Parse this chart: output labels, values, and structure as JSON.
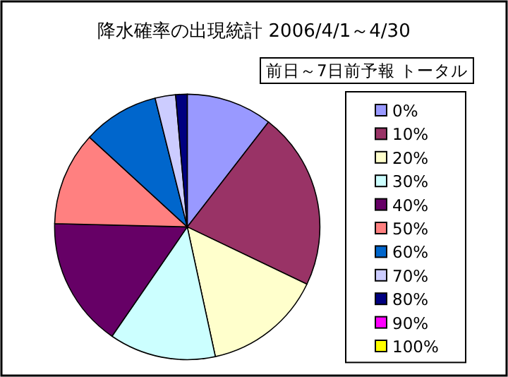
{
  "chart_data": {
    "type": "pie",
    "title": "降水確率の出現統計  2006/4/1～4/30",
    "subtitle": "前日～7日前予報 トータル",
    "categories": [
      "0%",
      "10%",
      "20%",
      "30%",
      "40%",
      "50%",
      "60%",
      "70%",
      "80%",
      "90%",
      "100%"
    ],
    "values": [
      10.5,
      21.6,
      14.5,
      13.0,
      15.8,
      11.4,
      9.3,
      2.5,
      1.4,
      0,
      0
    ],
    "colors": [
      "#9999ff",
      "#993366",
      "#ffffcc",
      "#ccffff",
      "#660066",
      "#ff8080",
      "#0066cc",
      "#ccccff",
      "#000080",
      "#ff00ff",
      "#ffff00"
    ],
    "legend": "right"
  }
}
